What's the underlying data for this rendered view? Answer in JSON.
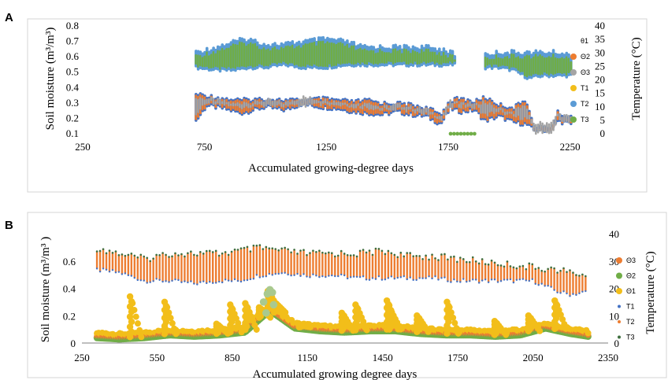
{
  "colors": {
    "theta1": "#f2be1a",
    "theta2": "#ed7d31",
    "theta3": "#a5a5a5",
    "theta2_b": "#70ad47",
    "T1": "#4472c4",
    "T2": "#ed7d31",
    "T3": "#70ad47",
    "T_blue": "#5b9bd5",
    "frame": "#d0d0d0"
  },
  "chart_data": [
    {
      "panel": "A",
      "type": "scatter",
      "xlabel": "Accumulated growing-degree days",
      "ylabel": "Soil moisture (m³/m³)",
      "ylabel2": "Temperature (°C)",
      "xticks": [
        250,
        750,
        1250,
        1750,
        2250
      ],
      "xlim": [
        250,
        2400
      ],
      "ylim": [
        0.1,
        0.8
      ],
      "yticks": [
        "0.1",
        "0.2",
        "0.3",
        "0.4",
        "0.5",
        "0.6",
        "0.7",
        "0.8"
      ],
      "y2lim": [
        0,
        40
      ],
      "y2ticks": [
        "0",
        "5",
        "10",
        "15",
        "20",
        "25",
        "30",
        "35",
        "40"
      ],
      "legend": [
        "θ1",
        "Θ2",
        "Θ3",
        "T1",
        "T2",
        "T3"
      ],
      "legend_position": "right",
      "x_range_observed": [
        715,
        2260
      ],
      "series": [
        {
          "name": "θ1",
          "axis": "left",
          "values": "daily range ≈0.2–0.36"
        },
        {
          "name": "Θ2",
          "axis": "left",
          "values": "daily range ≈0.15–0.34"
        },
        {
          "name": "Θ3",
          "axis": "left",
          "values": "daily range ≈0.2–0.33"
        },
        {
          "name": "T1",
          "axis": "right",
          "values": "daily range ≈0–34 °C"
        },
        {
          "name": "T2",
          "axis": "right",
          "values": "daily range ≈22–36 °C"
        },
        {
          "name": "T3",
          "axis": "right",
          "values": "daily range ≈23–33 °C"
        }
      ],
      "envelope_temperature": {
        "x": [
          715,
          800,
          870,
          930,
          1000,
          1080,
          1150,
          1250,
          1330,
          1400,
          1480,
          1560,
          1650,
          1740,
          1780,
          1890,
          1960,
          2020,
          2080,
          2140,
          2200,
          2250
        ],
        "lo": [
          24,
          23,
          23,
          24,
          24,
          25,
          24,
          24,
          25,
          25,
          25,
          25,
          25,
          25,
          25,
          24,
          24,
          23,
          20,
          21,
          21,
          21
        ],
        "hi": [
          31,
          33,
          35,
          36,
          34,
          34,
          35,
          36,
          35,
          33,
          33,
          33,
          33,
          32,
          30,
          30,
          31,
          31,
          31,
          31,
          31,
          30
        ]
      },
      "envelope_moisture": {
        "x": [
          715,
          760,
          830,
          900,
          1000,
          1080,
          1150,
          1230,
          1300,
          1360,
          1420,
          1480,
          1540,
          1600,
          1660,
          1720,
          1760,
          1800,
          1860,
          1900,
          1960,
          2020,
          2070,
          2100,
          2140,
          2180,
          2200,
          2250
        ],
        "lo": [
          0.17,
          0.27,
          0.25,
          0.22,
          0.26,
          0.24,
          0.28,
          0.26,
          0.25,
          0.23,
          0.22,
          0.21,
          0.23,
          0.21,
          0.2,
          0.15,
          0.25,
          0.23,
          0.24,
          0.17,
          0.2,
          0.16,
          0.15,
          0.11,
          0.11,
          0.12,
          0.17,
          0.15
        ],
        "hi": [
          0.37,
          0.36,
          0.34,
          0.33,
          0.34,
          0.33,
          0.33,
          0.34,
          0.33,
          0.32,
          0.33,
          0.31,
          0.31,
          0.3,
          0.28,
          0.24,
          0.33,
          0.34,
          0.32,
          0.35,
          0.3,
          0.28,
          0.34,
          0.16,
          0.15,
          0.16,
          0.25,
          0.22
        ]
      },
      "t3_baseline_x": [
        1760,
        1860
      ]
    },
    {
      "panel": "B",
      "type": "scatter",
      "xlabel": "Accumulated growing degree days",
      "ylabel": "Soil moisture (m³/m³ )",
      "ylabel2": "Temperature (°C)",
      "xticks": [
        250,
        550,
        850,
        1150,
        1450,
        1750,
        2050,
        2350
      ],
      "xlim": [
        250,
        2350
      ],
      "ylim": [
        0,
        0.8
      ],
      "yticks": [
        "0",
        "0.2",
        "0.4",
        "0.6"
      ],
      "y2lim": [
        0,
        40
      ],
      "y2ticks": [
        "0",
        "10",
        "20",
        "30",
        "40"
      ],
      "legend": [
        "Θ3",
        "Θ2",
        "Θ1",
        "T1",
        "T2",
        "T3"
      ],
      "legend_position": "right",
      "x_range_observed": [
        310,
        2270
      ],
      "series": [
        {
          "name": "Θ3",
          "axis": "left",
          "values": "≈0.03–0.35"
        },
        {
          "name": "Θ2",
          "axis": "left",
          "values": "≈0.03–0.39"
        },
        {
          "name": "Θ1",
          "axis": "left",
          "values": "baseline ≈0.03–0.1 with peaks to ≈0.34"
        },
        {
          "name": "T1",
          "axis": "right",
          "values": "≈20–36 °C"
        },
        {
          "name": "T2",
          "axis": "right",
          "values": "≈20–36 °C"
        },
        {
          "name": "T3",
          "axis": "right",
          "values": "≈20–37 °C"
        }
      ],
      "envelope_temperature": {
        "x": [
          310,
          400,
          500,
          600,
          700,
          800,
          880,
          960,
          1050,
          1150,
          1250,
          1350,
          1450,
          1550,
          1650,
          1750,
          1850,
          1950,
          2050,
          2150,
          2200,
          2270
        ],
        "lo": [
          26,
          25,
          22,
          22,
          21,
          22,
          22,
          24,
          25,
          24,
          24,
          23,
          23,
          23,
          23,
          22,
          22,
          22,
          22,
          18,
          17,
          18
        ],
        "hi": [
          36,
          34,
          32,
          34,
          34,
          34,
          35,
          36,
          35,
          34,
          34,
          34,
          35,
          33,
          33,
          32,
          31,
          30,
          29,
          28,
          27,
          26
        ]
      },
      "theta_baseline": {
        "x": [
          310,
          400,
          500,
          600,
          700,
          800,
          900,
          1000,
          1100,
          1200,
          1300,
          1400,
          1500,
          1600,
          1700,
          1800,
          1900,
          2000,
          2100,
          2200,
          2270
        ],
        "v": [
          0.05,
          0.04,
          0.05,
          0.07,
          0.06,
          0.07,
          0.09,
          0.25,
          0.12,
          0.1,
          0.09,
          0.1,
          0.1,
          0.08,
          0.07,
          0.07,
          0.06,
          0.07,
          0.12,
          0.08,
          0.06
        ]
      },
      "theta_peaks": {
        "x": [
          445,
          583,
          790,
          845,
          905,
          960,
          995,
          1020,
          1120,
          1290,
          1345,
          1470,
          1480,
          1590,
          1710,
          1900,
          2035,
          2140
        ],
        "v": [
          0.34,
          0.3,
          0.14,
          0.28,
          0.29,
          0.26,
          0.38,
          0.3,
          0.13,
          0.22,
          0.28,
          0.31,
          0.25,
          0.2,
          0.3,
          0.16,
          0.2,
          0.31
        ]
      }
    }
  ]
}
